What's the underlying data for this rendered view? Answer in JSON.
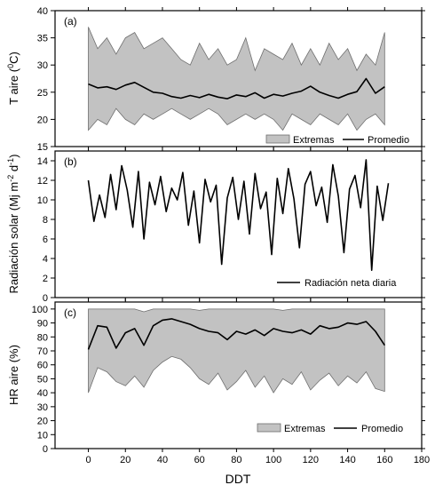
{
  "figure": {
    "xlabel": "DDT",
    "x_ticks": [
      0,
      20,
      40,
      60,
      80,
      100,
      120,
      140,
      160,
      180
    ],
    "xlim": [
      -18,
      180
    ]
  },
  "colors": {
    "band_fill": "#c2c2c2",
    "band_edge": "#6e6e6e",
    "line": "#000000",
    "axis": "#000000"
  },
  "chart_data": [
    {
      "type": "area",
      "panel_label": "(a)",
      "ylabel": "T aire (°C)",
      "ylabel_parts": {
        "main": "T aire (",
        "sup": "0",
        "end": "C)"
      },
      "ylim": [
        15,
        40
      ],
      "y_ticks": [
        15,
        20,
        25,
        30,
        35,
        40
      ],
      "legend": {
        "position": "bottom-right",
        "entries": [
          "Extremas",
          "Promedio"
        ]
      },
      "series": [
        {
          "name": "Extremas",
          "kind": "band",
          "x": [
            0,
            5,
            10,
            15,
            20,
            25,
            30,
            35,
            40,
            45,
            50,
            55,
            60,
            65,
            70,
            75,
            80,
            85,
            90,
            95,
            100,
            105,
            110,
            115,
            120,
            125,
            130,
            135,
            140,
            145,
            150,
            155,
            160
          ],
          "upper": [
            37,
            33,
            35,
            32,
            35,
            36,
            33,
            34,
            35,
            33,
            31,
            30,
            34,
            31,
            33,
            30,
            31,
            35,
            29,
            33,
            32,
            31,
            34,
            30,
            33,
            30,
            34,
            31,
            33,
            29,
            32,
            30,
            36
          ],
          "lower": [
            18,
            20,
            19,
            22,
            20,
            19,
            21,
            20,
            21,
            22,
            21,
            20,
            21,
            22,
            21,
            19,
            20,
            21,
            20,
            21,
            20,
            18,
            21,
            20,
            19,
            21,
            20,
            19,
            21,
            18,
            20,
            21,
            19
          ]
        },
        {
          "name": "Promedio",
          "kind": "line",
          "x": [
            0,
            5,
            10,
            15,
            20,
            25,
            30,
            35,
            40,
            45,
            50,
            55,
            60,
            65,
            70,
            75,
            80,
            85,
            90,
            95,
            100,
            105,
            110,
            115,
            120,
            125,
            130,
            135,
            140,
            145,
            150,
            155,
            160
          ],
          "values": [
            26.5,
            25.8,
            26.0,
            25.5,
            26.3,
            26.8,
            25.9,
            25.0,
            24.8,
            24.2,
            23.9,
            24.4,
            24.0,
            24.6,
            24.1,
            23.8,
            24.5,
            24.2,
            24.9,
            23.9,
            24.6,
            24.3,
            24.8,
            25.2,
            26.1,
            25.0,
            24.4,
            23.9,
            24.6,
            25.1,
            27.5,
            24.8,
            26.0
          ]
        }
      ]
    },
    {
      "type": "line",
      "panel_label": "(b)",
      "ylabel": "Radiación solar (Mj m-2 d-1)",
      "ylabel_parts": {
        "main": "Radiación solar (Mj m",
        "sup1": "-2",
        "mid": " d",
        "sup2": "-1",
        "end": ")"
      },
      "ylim": [
        0,
        15
      ],
      "y_ticks": [
        0,
        2,
        4,
        6,
        8,
        10,
        12,
        14
      ],
      "legend": {
        "position": "bottom-right",
        "entries": [
          "Radiación neta diaria"
        ]
      },
      "series": [
        {
          "name": "Radiación neta diaria",
          "kind": "line",
          "x": [
            0,
            3,
            6,
            9,
            12,
            15,
            18,
            21,
            24,
            27,
            30,
            33,
            36,
            39,
            42,
            45,
            48,
            51,
            54,
            57,
            60,
            63,
            66,
            69,
            72,
            75,
            78,
            81,
            84,
            87,
            90,
            93,
            96,
            99,
            102,
            105,
            108,
            111,
            114,
            117,
            120,
            123,
            126,
            129,
            132,
            135,
            138,
            141,
            144,
            147,
            150,
            153,
            156,
            159,
            162
          ],
          "values": [
            12.0,
            7.8,
            10.5,
            8.2,
            12.6,
            9.0,
            13.5,
            11.0,
            7.2,
            12.9,
            6.0,
            11.8,
            9.5,
            12.4,
            8.8,
            11.2,
            10.0,
            12.8,
            7.4,
            10.9,
            5.6,
            12.1,
            9.8,
            11.5,
            3.4,
            10.2,
            12.3,
            8.0,
            11.9,
            6.5,
            12.7,
            9.1,
            10.8,
            4.4,
            12.2,
            8.6,
            13.2,
            10.1,
            5.1,
            11.6,
            12.9,
            9.4,
            11.3,
            7.7,
            13.6,
            10.4,
            4.6,
            11.1,
            12.5,
            9.2,
            14.1,
            2.8,
            11.4,
            7.9,
            11.7
          ]
        }
      ]
    },
    {
      "type": "area",
      "panel_label": "(c)",
      "ylabel": "HR aire (%)",
      "ylim": [
        0,
        105
      ],
      "y_ticks": [
        0,
        10,
        20,
        30,
        40,
        50,
        60,
        70,
        80,
        90,
        100
      ],
      "legend": {
        "position": "bottom-right",
        "entries": [
          "Extremas",
          "Promedio"
        ]
      },
      "series": [
        {
          "name": "Extremas",
          "kind": "band",
          "x": [
            0,
            5,
            10,
            15,
            20,
            25,
            30,
            35,
            40,
            45,
            50,
            55,
            60,
            65,
            70,
            75,
            80,
            85,
            90,
            95,
            100,
            105,
            110,
            115,
            120,
            125,
            130,
            135,
            140,
            145,
            150,
            155,
            160
          ],
          "upper": [
            100,
            100,
            100,
            100,
            100,
            100,
            98,
            100,
            100,
            100,
            100,
            100,
            99,
            100,
            100,
            100,
            100,
            100,
            100,
            100,
            100,
            99,
            100,
            100,
            100,
            100,
            100,
            100,
            100,
            100,
            100,
            100,
            100
          ],
          "lower": [
            40,
            58,
            55,
            48,
            45,
            52,
            44,
            56,
            62,
            66,
            64,
            58,
            50,
            46,
            54,
            42,
            48,
            56,
            44,
            52,
            40,
            50,
            46,
            55,
            42,
            49,
            54,
            45,
            52,
            47,
            55,
            43,
            41
          ]
        },
        {
          "name": "Promedio",
          "kind": "line",
          "x": [
            0,
            5,
            10,
            15,
            20,
            25,
            30,
            35,
            40,
            45,
            50,
            55,
            60,
            65,
            70,
            75,
            80,
            85,
            90,
            95,
            100,
            105,
            110,
            115,
            120,
            125,
            130,
            135,
            140,
            145,
            150,
            155,
            160
          ],
          "values": [
            71,
            88,
            87,
            72,
            83,
            86,
            74,
            88,
            92,
            93,
            91,
            89,
            86,
            84,
            83,
            78,
            84,
            82,
            85,
            81,
            86,
            84,
            83,
            85,
            82,
            88,
            86,
            87,
            90,
            89,
            91,
            84,
            74
          ]
        }
      ]
    }
  ]
}
